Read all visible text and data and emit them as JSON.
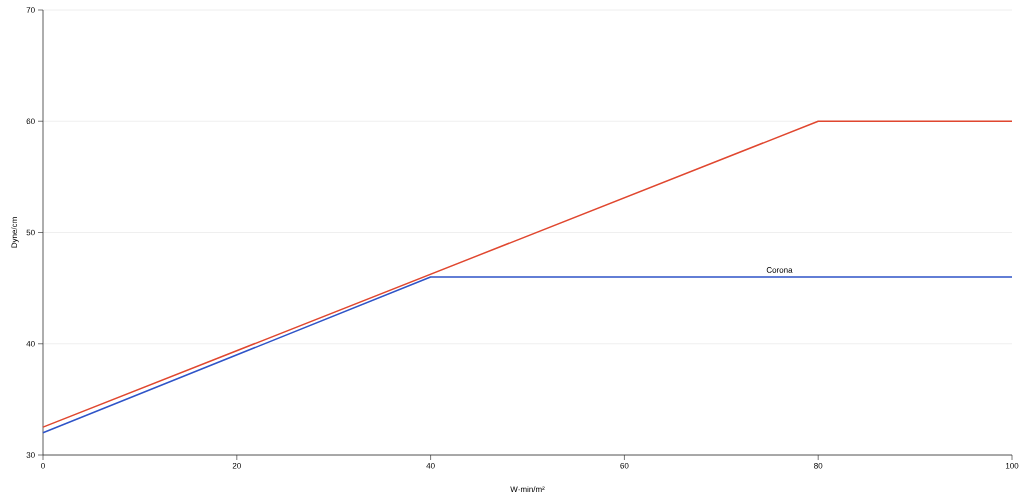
{
  "chart_data": {
    "type": "line",
    "xlabel": "W·min/m²",
    "ylabel": "Dyne/cm",
    "series": [
      {
        "color": "#e0472f",
        "x": [
          0,
          80,
          100
        ],
        "values": [
          32.5,
          60,
          60
        ]
      },
      {
        "name": "Corona",
        "color": "#2f54c8",
        "x": [
          0,
          40,
          100
        ],
        "values": [
          32,
          46,
          46
        ]
      }
    ],
    "xlim": [
      0,
      100
    ],
    "xticks": [
      0,
      20,
      40,
      60,
      80,
      100
    ],
    "ylim": [
      30,
      70
    ],
    "yticks": [
      30,
      40,
      50,
      60,
      70
    ],
    "grid": "y",
    "legend": false,
    "marker": "none",
    "line_style": "solid"
  }
}
